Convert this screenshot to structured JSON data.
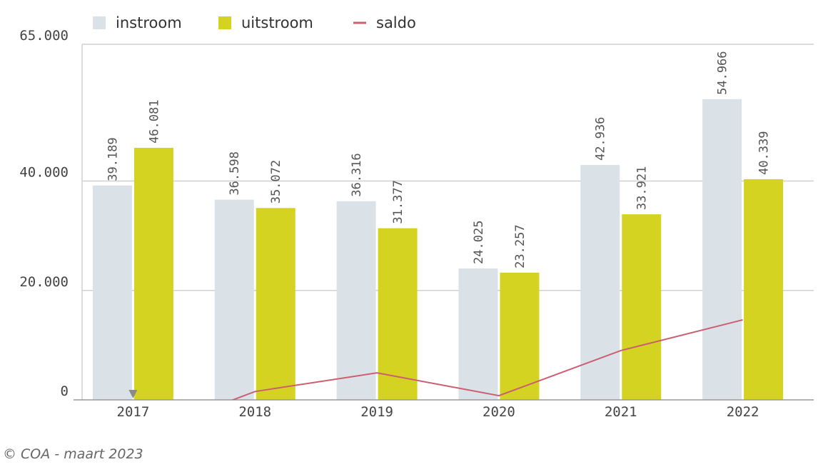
{
  "chart_data": {
    "type": "bar",
    "categories": [
      "2017",
      "2018",
      "2019",
      "2020",
      "2021",
      "2022"
    ],
    "series": [
      {
        "name": "instroom",
        "kind": "bar",
        "color": "#dbe2e7",
        "values": [
          39189,
          36598,
          36316,
          24025,
          42936,
          54966
        ],
        "labels": [
          "39.189",
          "36.598",
          "36.316",
          "24.025",
          "42.936",
          "54.966"
        ]
      },
      {
        "name": "uitstroom",
        "kind": "bar",
        "color": "#d4d321",
        "values": [
          46081,
          35072,
          31377,
          23257,
          33921,
          40339
        ],
        "labels": [
          "46.081",
          "35.072",
          "31.377",
          "23.257",
          "33.921",
          "40.339"
        ]
      },
      {
        "name": "saldo",
        "kind": "line",
        "color": "#cc5e72",
        "values": [
          -6892,
          1526,
          4939,
          768,
          9015,
          14627
        ]
      }
    ],
    "ylim": [
      0,
      65000
    ],
    "yticks": [
      0,
      20000,
      40000,
      65000
    ],
    "ytick_labels": [
      "0",
      "20.000",
      "40.000",
      "65.000"
    ],
    "grid": true,
    "legend_position": "top-left"
  },
  "footer": "© COA - maart 2023",
  "colors": {
    "grid": "#d0d0d0",
    "axis": "#999999",
    "marker": "#8a8a8a"
  }
}
